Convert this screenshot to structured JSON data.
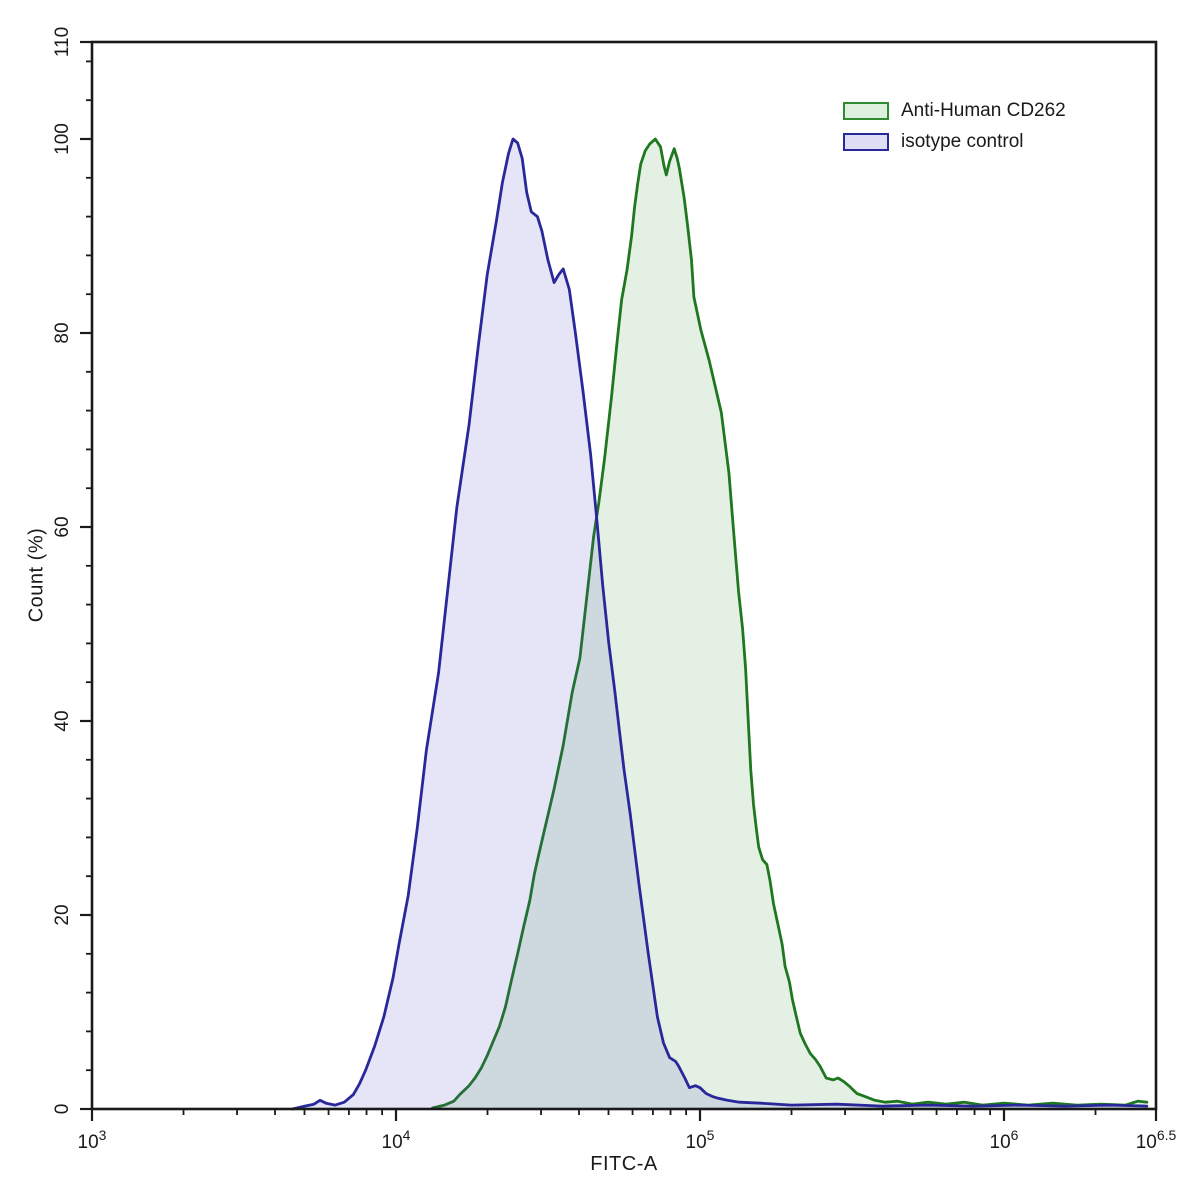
{
  "chart_data": {
    "type": "area",
    "subtype": "flow-cytometry-histogram-overlay",
    "title": "",
    "xlabel": "FITC-A",
    "ylabel": "Count (%)",
    "x_scale": "log10",
    "x_range_log10": [
      3,
      6.5
    ],
    "ylim": [
      0,
      110
    ],
    "grid": false,
    "axis_color": "#1a1a1a",
    "x_major_ticks": [
      {
        "log": 3,
        "base": "10",
        "exp": "3"
      },
      {
        "log": 4,
        "base": "10",
        "exp": "4"
      },
      {
        "log": 5,
        "base": "10",
        "exp": "5"
      },
      {
        "log": 6,
        "base": "10",
        "exp": "6"
      },
      {
        "log": 6.5,
        "base": "10",
        "exp": "6.5"
      }
    ],
    "y_major_ticks": [
      0,
      20,
      40,
      60,
      80,
      100,
      110
    ],
    "y_minor_step": 4,
    "legend": {
      "position": "top-right",
      "entries": [
        {
          "label": "Anti-Human CD262",
          "line_color": "#2e8b2e",
          "fill_color": "#ddefdd"
        },
        {
          "label": "isotype control",
          "line_color": "#28289b",
          "fill_color": "#dedef6"
        }
      ]
    },
    "series": [
      {
        "name": "Anti-Human CD262",
        "slug": "anti-human-cd262",
        "line_color": "#1f771f",
        "fill_color": "rgba(60,150,60,0.14)",
        "peak_log10_x": 4.853,
        "peak_count": 100,
        "points": [
          [
            4.12,
            0.1
          ],
          [
            4.16,
            0.4
          ],
          [
            4.19,
            0.8
          ],
          [
            4.21,
            1.5
          ],
          [
            4.24,
            2.4
          ],
          [
            4.26,
            3.2
          ],
          [
            4.28,
            4.2
          ],
          [
            4.3,
            5.5
          ],
          [
            4.32,
            7.0
          ],
          [
            4.34,
            8.5
          ],
          [
            4.36,
            10.5
          ],
          [
            4.38,
            13.3
          ],
          [
            4.4,
            16.0
          ],
          [
            4.42,
            18.8
          ],
          [
            4.44,
            21.5
          ],
          [
            4.455,
            24.2
          ],
          [
            4.47,
            26.3
          ],
          [
            4.49,
            29.0
          ],
          [
            4.52,
            33.0
          ],
          [
            4.55,
            37.5
          ],
          [
            4.58,
            43.0
          ],
          [
            4.605,
            46.5
          ],
          [
            4.627,
            52.6
          ],
          [
            4.65,
            59.0
          ],
          [
            4.667,
            62.5
          ],
          [
            4.686,
            67.0
          ],
          [
            4.709,
            73.4
          ],
          [
            4.727,
            79.0
          ],
          [
            4.742,
            83.4
          ],
          [
            4.76,
            86.5
          ],
          [
            4.775,
            90.0
          ],
          [
            4.785,
            93.0
          ],
          [
            4.795,
            95.4
          ],
          [
            4.805,
            97.4
          ],
          [
            4.82,
            98.8
          ],
          [
            4.835,
            99.5
          ],
          [
            4.853,
            100.0
          ],
          [
            4.87,
            99.2
          ],
          [
            4.882,
            97.2
          ],
          [
            4.889,
            96.3
          ],
          [
            4.9,
            97.7
          ],
          [
            4.915,
            99.0
          ],
          [
            4.925,
            98.0
          ],
          [
            4.932,
            97.0
          ],
          [
            4.948,
            93.9
          ],
          [
            4.96,
            90.9
          ],
          [
            4.972,
            87.5
          ],
          [
            4.98,
            83.7
          ],
          [
            5.003,
            80.3
          ],
          [
            5.03,
            77.2
          ],
          [
            5.07,
            71.8
          ],
          [
            5.095,
            65.6
          ],
          [
            5.11,
            59.8
          ],
          [
            5.127,
            53.3
          ],
          [
            5.14,
            49.5
          ],
          [
            5.15,
            45.4
          ],
          [
            5.16,
            39.3
          ],
          [
            5.167,
            34.9
          ],
          [
            5.176,
            31.4
          ],
          [
            5.185,
            29.0
          ],
          [
            5.193,
            27.0
          ],
          [
            5.206,
            25.7
          ],
          [
            5.22,
            25.2
          ],
          [
            5.23,
            23.6
          ],
          [
            5.242,
            21.1
          ],
          [
            5.258,
            18.8
          ],
          [
            5.27,
            17.0
          ],
          [
            5.28,
            14.7
          ],
          [
            5.294,
            13.1
          ],
          [
            5.304,
            11.3
          ],
          [
            5.317,
            9.5
          ],
          [
            5.33,
            7.8
          ],
          [
            5.346,
            6.7
          ],
          [
            5.363,
            5.7
          ],
          [
            5.38,
            5.1
          ],
          [
            5.395,
            4.4
          ],
          [
            5.415,
            3.2
          ],
          [
            5.438,
            3.0
          ],
          [
            5.454,
            3.2
          ],
          [
            5.474,
            2.8
          ],
          [
            5.493,
            2.3
          ],
          [
            5.516,
            1.6
          ],
          [
            5.542,
            1.3
          ],
          [
            5.575,
            0.9
          ],
          [
            5.61,
            0.7
          ],
          [
            5.65,
            0.8
          ],
          [
            5.7,
            0.5
          ],
          [
            5.75,
            0.7
          ],
          [
            5.81,
            0.5
          ],
          [
            5.87,
            0.7
          ],
          [
            5.93,
            0.4
          ],
          [
            6.0,
            0.6
          ],
          [
            6.08,
            0.4
          ],
          [
            6.16,
            0.6
          ],
          [
            6.24,
            0.4
          ],
          [
            6.32,
            0.5
          ],
          [
            6.4,
            0.4
          ],
          [
            6.44,
            0.8
          ],
          [
            6.47,
            0.7
          ]
        ]
      },
      {
        "name": "isotype control",
        "slug": "isotype-control",
        "line_color": "#28289b",
        "fill_color": "rgba(70,70,200,0.14)",
        "peak_log10_x": 4.385,
        "peak_count": 100,
        "points": [
          [
            3.66,
            0.0
          ],
          [
            3.7,
            0.3
          ],
          [
            3.73,
            0.5
          ],
          [
            3.75,
            0.9
          ],
          [
            3.77,
            0.6
          ],
          [
            3.8,
            0.4
          ],
          [
            3.83,
            0.7
          ],
          [
            3.86,
            1.5
          ],
          [
            3.88,
            2.6
          ],
          [
            3.9,
            4.0
          ],
          [
            3.93,
            6.5
          ],
          [
            3.96,
            9.5
          ],
          [
            3.99,
            13.5
          ],
          [
            4.01,
            17.0
          ],
          [
            4.04,
            22.0
          ],
          [
            4.07,
            29.0
          ],
          [
            4.1,
            37.0
          ],
          [
            4.14,
            45.0
          ],
          [
            4.17,
            53.5
          ],
          [
            4.2,
            62.0
          ],
          [
            4.24,
            70.5
          ],
          [
            4.27,
            78.5
          ],
          [
            4.3,
            86.0
          ],
          [
            4.33,
            91.5
          ],
          [
            4.35,
            95.5
          ],
          [
            4.37,
            98.5
          ],
          [
            4.385,
            100.0
          ],
          [
            4.4,
            99.6
          ],
          [
            4.415,
            98.0
          ],
          [
            4.43,
            94.5
          ],
          [
            4.445,
            92.5
          ],
          [
            4.465,
            92.0
          ],
          [
            4.48,
            90.5
          ],
          [
            4.5,
            87.5
          ],
          [
            4.52,
            85.2
          ],
          [
            4.535,
            86.0
          ],
          [
            4.55,
            86.6
          ],
          [
            4.57,
            84.5
          ],
          [
            4.59,
            80.0
          ],
          [
            4.615,
            74.0
          ],
          [
            4.64,
            67.5
          ],
          [
            4.66,
            61.0
          ],
          [
            4.68,
            54.0
          ],
          [
            4.7,
            48.0
          ],
          [
            4.72,
            43.0
          ],
          [
            4.735,
            39.0
          ],
          [
            4.75,
            35.0
          ],
          [
            4.77,
            30.5
          ],
          [
            4.8,
            23.0
          ],
          [
            4.83,
            16.0
          ],
          [
            4.86,
            9.5
          ],
          [
            4.88,
            6.8
          ],
          [
            4.9,
            5.3
          ],
          [
            4.92,
            4.9
          ],
          [
            4.93,
            4.4
          ],
          [
            4.95,
            3.2
          ],
          [
            4.965,
            2.2
          ],
          [
            4.985,
            2.4
          ],
          [
            5.0,
            2.2
          ],
          [
            5.02,
            1.6
          ],
          [
            5.04,
            1.3
          ],
          [
            5.06,
            1.1
          ],
          [
            5.09,
            0.9
          ],
          [
            5.13,
            0.7
          ],
          [
            5.2,
            0.6
          ],
          [
            5.3,
            0.4
          ],
          [
            5.45,
            0.5
          ],
          [
            5.6,
            0.3
          ],
          [
            5.75,
            0.4
          ],
          [
            5.9,
            0.3
          ],
          [
            6.05,
            0.4
          ],
          [
            6.2,
            0.3
          ],
          [
            6.35,
            0.4
          ],
          [
            6.47,
            0.3
          ]
        ]
      }
    ]
  }
}
